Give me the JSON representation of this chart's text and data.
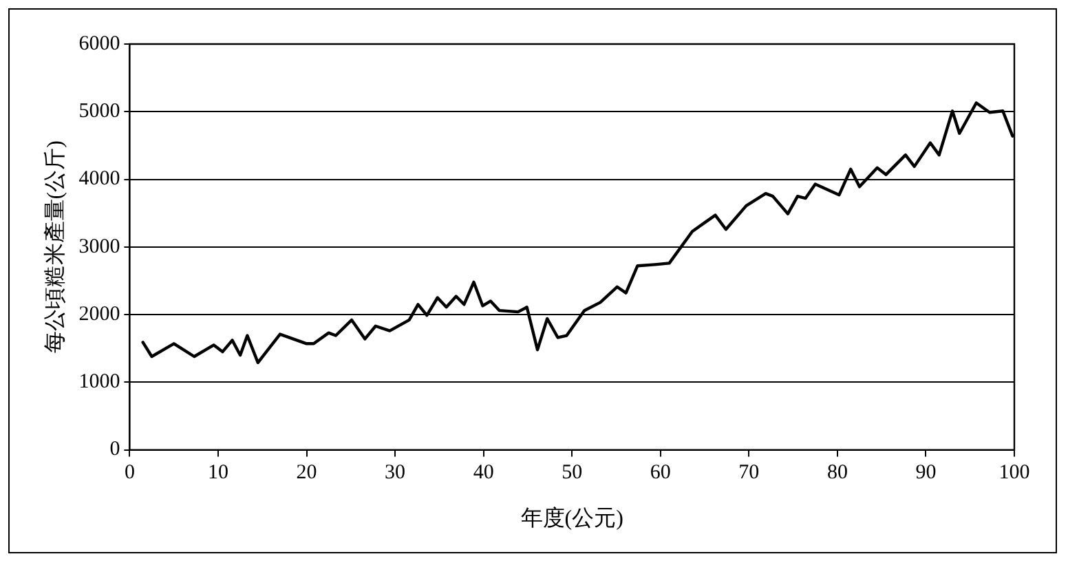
{
  "chart_data": {
    "type": "line",
    "xlabel": "年度(公元)",
    "ylabel": "每公頃糙米產量(公斤)",
    "x": [
      1.5,
      2.5,
      5,
      7.3,
      9.5,
      10.5,
      11.6,
      12.5,
      13.3,
      14.5,
      17,
      20,
      20.8,
      22.5,
      23.3,
      25.1,
      26.6,
      27.8,
      29.4,
      31.6,
      32.6,
      33.6,
      34.8,
      35.8,
      36.9,
      37.8,
      38.9,
      39.9,
      40.8,
      41.8,
      43.9,
      44.9,
      46.1,
      47.2,
      48.4,
      49.4,
      51.4,
      53.2,
      55.1,
      56.1,
      57.4,
      59.4,
      61,
      63.6,
      64.9,
      66.2,
      67.4,
      69.7,
      71.9,
      72.7,
      74.4,
      75.5,
      76.4,
      77.5,
      80.2,
      81.5,
      82.5,
      84.5,
      85.5,
      87.7,
      88.7,
      90.5,
      91.5,
      93,
      93.8,
      95.7,
      97.2,
      98.7,
      99.8
    ],
    "series": [
      {
        "color": "#000000",
        "values": [
          1590,
          1380,
          1570,
          1380,
          1550,
          1450,
          1620,
          1400,
          1690,
          1290,
          1710,
          1570,
          1570,
          1730,
          1690,
          1920,
          1640,
          1830,
          1760,
          1920,
          2150,
          1990,
          2250,
          2110,
          2270,
          2150,
          2480,
          2130,
          2200,
          2060,
          2040,
          2110,
          1480,
          1940,
          1660,
          1690,
          2060,
          2180,
          2410,
          2320,
          2720,
          2740,
          2760,
          3230,
          3350,
          3470,
          3260,
          3610,
          3790,
          3750,
          3490,
          3750,
          3720,
          3930,
          3770,
          4150,
          3890,
          4170,
          4070,
          4360,
          4190,
          4540,
          4360,
          5010,
          4680,
          5130,
          4990,
          5010,
          4640
        ]
      }
    ],
    "xlim": [
      0,
      100
    ],
    "xticks": [
      0,
      10,
      20,
      30,
      40,
      50,
      60,
      70,
      80,
      90,
      100
    ],
    "ylim": [
      0,
      6000
    ],
    "yticks": [
      0,
      1000,
      2000,
      3000,
      4000,
      5000,
      6000
    ],
    "grid": "y",
    "legend": false,
    "marker": "none",
    "line_style": "solid"
  }
}
